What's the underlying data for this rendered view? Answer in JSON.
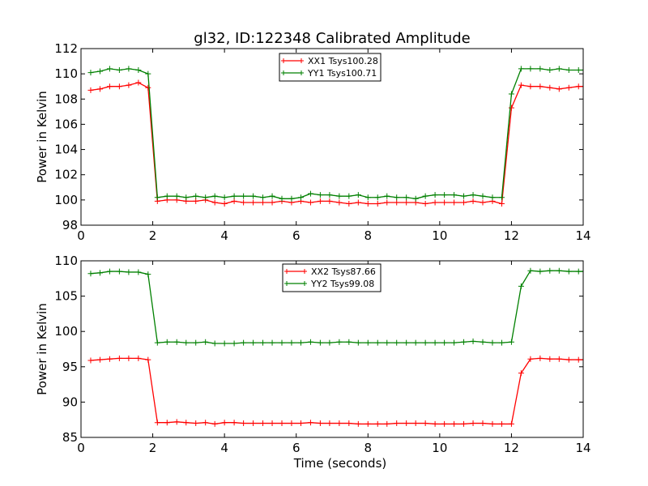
{
  "chart_data": [
    {
      "type": "line",
      "title": "gl32, ID:122348 Calibrated Amplitude",
      "xlabel": "",
      "ylabel": "Power in Kelvin",
      "xlim": [
        0,
        14
      ],
      "ylim": [
        98,
        112
      ],
      "xticks": [
        "0",
        "2",
        "4",
        "6",
        "8",
        "10",
        "12",
        "14"
      ],
      "yticks": [
        "98",
        "100",
        "102",
        "104",
        "106",
        "108",
        "110",
        "112"
      ],
      "grid": false,
      "legend_position": "top-center",
      "x": [
        0.27,
        0.53,
        0.8,
        1.07,
        1.33,
        1.6,
        1.87,
        2.13,
        2.4,
        2.67,
        2.93,
        3.2,
        3.47,
        3.73,
        4.0,
        4.27,
        4.53,
        4.8,
        5.07,
        5.33,
        5.6,
        5.87,
        6.13,
        6.4,
        6.67,
        6.93,
        7.2,
        7.47,
        7.73,
        8.0,
        8.27,
        8.53,
        8.8,
        9.07,
        9.33,
        9.6,
        9.87,
        10.13,
        10.4,
        10.67,
        10.93,
        11.2,
        11.47,
        11.73,
        12.0,
        12.27,
        12.53,
        12.8,
        13.07,
        13.33,
        13.6,
        13.87,
        14.0
      ],
      "series": [
        {
          "name": "XX1 Tsys100.28",
          "color": "#ff0000",
          "values": [
            108.7,
            108.8,
            109.0,
            109.0,
            109.1,
            109.3,
            108.9,
            99.9,
            100.0,
            100.0,
            99.9,
            99.9,
            100.0,
            99.8,
            99.7,
            99.9,
            99.8,
            99.8,
            99.8,
            99.8,
            99.9,
            99.8,
            99.9,
            99.8,
            99.9,
            99.9,
            99.8,
            99.7,
            99.8,
            99.7,
            99.7,
            99.8,
            99.8,
            99.8,
            99.8,
            99.7,
            99.8,
            99.8,
            99.8,
            99.8,
            99.9,
            99.8,
            99.9,
            99.7,
            107.3,
            109.1,
            109.0,
            109.0,
            108.9,
            108.8,
            108.9,
            109.0,
            109.0
          ]
        },
        {
          "name": "YY1 Tsys100.71",
          "color": "#008000",
          "values": [
            110.1,
            110.2,
            110.4,
            110.3,
            110.4,
            110.3,
            110.0,
            100.2,
            100.3,
            100.3,
            100.2,
            100.3,
            100.2,
            100.3,
            100.2,
            100.3,
            100.3,
            100.3,
            100.2,
            100.3,
            100.1,
            100.1,
            100.2,
            100.5,
            100.4,
            100.4,
            100.3,
            100.3,
            100.4,
            100.2,
            100.2,
            100.3,
            100.2,
            100.2,
            100.1,
            100.3,
            100.4,
            100.4,
            100.4,
            100.3,
            100.4,
            100.3,
            100.2,
            100.2,
            108.4,
            110.4,
            110.4,
            110.4,
            110.3,
            110.4,
            110.3,
            110.3,
            110.3
          ]
        }
      ]
    },
    {
      "type": "line",
      "title": "",
      "xlabel": "Time (seconds)",
      "ylabel": "Power in Kelvin",
      "xlim": [
        0,
        14
      ],
      "ylim": [
        85,
        110
      ],
      "xticks": [
        "0",
        "2",
        "4",
        "6",
        "8",
        "10",
        "12",
        "14"
      ],
      "yticks": [
        "85",
        "90",
        "95",
        "100",
        "105",
        "110"
      ],
      "grid": false,
      "legend_position": "top-center",
      "x": [
        0.27,
        0.53,
        0.8,
        1.07,
        1.33,
        1.6,
        1.87,
        2.13,
        2.4,
        2.67,
        2.93,
        3.2,
        3.47,
        3.73,
        4.0,
        4.27,
        4.53,
        4.8,
        5.07,
        5.33,
        5.6,
        5.87,
        6.13,
        6.4,
        6.67,
        6.93,
        7.2,
        7.47,
        7.73,
        8.0,
        8.27,
        8.53,
        8.8,
        9.07,
        9.33,
        9.6,
        9.87,
        10.13,
        10.4,
        10.67,
        10.93,
        11.2,
        11.47,
        11.73,
        12.0,
        12.27,
        12.53,
        12.8,
        13.07,
        13.33,
        13.6,
        13.87,
        14.0
      ],
      "series": [
        {
          "name": "XX2 Tsys87.66",
          "color": "#ff0000",
          "values": [
            95.9,
            96.0,
            96.1,
            96.2,
            96.2,
            96.2,
            96.0,
            87.1,
            87.1,
            87.2,
            87.1,
            87.0,
            87.1,
            86.9,
            87.1,
            87.1,
            87.0,
            87.0,
            87.0,
            87.0,
            87.0,
            87.0,
            87.0,
            87.1,
            87.0,
            87.0,
            87.0,
            87.0,
            86.9,
            86.9,
            86.9,
            86.9,
            87.0,
            87.0,
            87.0,
            87.0,
            86.9,
            86.9,
            86.9,
            86.9,
            87.0,
            87.0,
            86.9,
            86.9,
            86.9,
            94.1,
            96.1,
            96.2,
            96.1,
            96.1,
            96.0,
            96.0,
            96.0
          ]
        },
        {
          "name": "YY2 Tsys99.08",
          "color": "#008000",
          "values": [
            108.2,
            108.3,
            108.5,
            108.5,
            108.4,
            108.4,
            108.1,
            98.4,
            98.5,
            98.5,
            98.4,
            98.4,
            98.5,
            98.3,
            98.3,
            98.3,
            98.4,
            98.4,
            98.4,
            98.4,
            98.4,
            98.4,
            98.4,
            98.5,
            98.4,
            98.4,
            98.5,
            98.5,
            98.4,
            98.4,
            98.4,
            98.4,
            98.4,
            98.4,
            98.4,
            98.4,
            98.4,
            98.4,
            98.4,
            98.5,
            98.6,
            98.5,
            98.4,
            98.4,
            98.5,
            106.4,
            108.6,
            108.5,
            108.6,
            108.6,
            108.5,
            108.5,
            108.5
          ]
        }
      ]
    }
  ]
}
